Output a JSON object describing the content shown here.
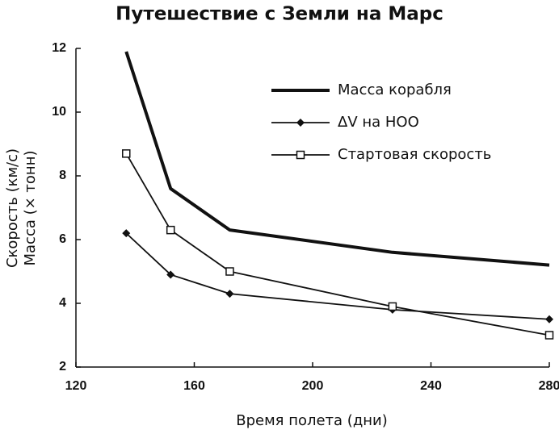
{
  "chart_data": {
    "type": "line",
    "title": "Путешествие с Земли на Марс",
    "x_label": "Время полета (дни)",
    "y_label": [
      "Скорость (км/с)",
      "Масса (× тонн)"
    ],
    "x": [
      137,
      152,
      172,
      227,
      280
    ],
    "series": [
      {
        "name": "Масса корабля",
        "color": "#111111",
        "marker": "none",
        "line_width": 4,
        "values": [
          11.9,
          7.6,
          6.3,
          5.6,
          5.2
        ]
      },
      {
        "name": "ΔV на НОО",
        "color": "#111111",
        "marker": "diamond",
        "line_width": 1.8,
        "values": [
          6.2,
          4.9,
          4.3,
          3.8,
          3.5
        ]
      },
      {
        "name": "Стартовая скорость",
        "color": "#111111",
        "marker": "square-open",
        "line_width": 1.8,
        "values": [
          8.7,
          6.3,
          5.0,
          3.9,
          3.0
        ]
      }
    ],
    "xlim": [
      120,
      280
    ],
    "xticks": [
      120,
      160,
      200,
      240,
      280
    ],
    "ylim": [
      2,
      12
    ],
    "yticks": [
      2,
      4,
      6,
      8,
      10,
      12
    ],
    "grid": false,
    "legend": "upper right"
  }
}
